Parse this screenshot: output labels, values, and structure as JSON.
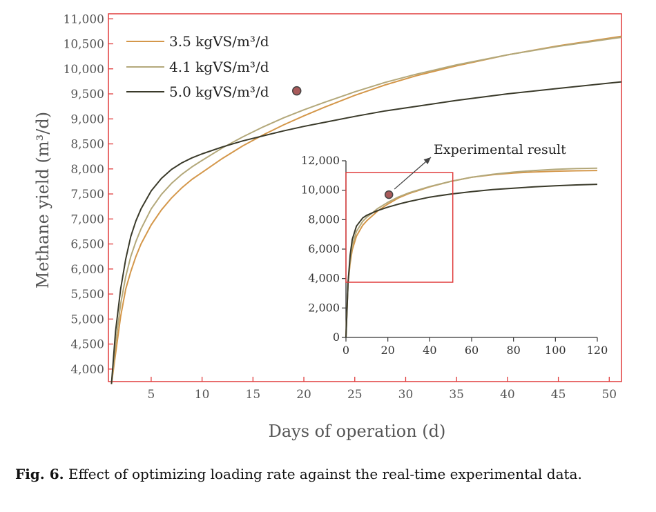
{
  "chart_data": [
    {
      "type": "line",
      "xlabel": "Days of operation (d)",
      "ylabel": "Methane yield (m³/d)",
      "xlim": [
        0.8,
        51.2
      ],
      "ylim": [
        3750,
        11100
      ],
      "x_ticks": [
        5,
        10,
        15,
        20,
        25,
        30,
        35,
        40,
        45,
        50
      ],
      "x_tick_labels": [
        "5",
        "10",
        "15",
        "20",
        "25",
        "30",
        "35",
        "40",
        "45",
        "50"
      ],
      "y_ticks": [
        4000,
        4500,
        5000,
        5500,
        6000,
        6500,
        7000,
        7500,
        8000,
        8500,
        9000,
        9500,
        10000,
        10500,
        11000
      ],
      "y_tick_labels": [
        "4,000",
        "4,500",
        "5,000",
        "5,500",
        "6,000",
        "6,500",
        "7,000",
        "7,500",
        "8,000",
        "8,500",
        "9,000",
        "9,500",
        "10,000",
        "10,500",
        "11,000"
      ],
      "legend_position": "top-left",
      "series": [
        {
          "name": "3.5 kgVS/m³/d",
          "color": "#d4974a",
          "x": [
            1.1,
            1.5,
            2,
            2.5,
            3,
            3.5,
            4,
            5,
            6,
            7,
            8,
            9,
            10,
            12,
            14,
            16,
            18,
            20,
            22,
            25,
            28,
            31,
            35,
            40,
            45,
            51.2
          ],
          "y": [
            3700,
            4300,
            5050,
            5600,
            5950,
            6250,
            6500,
            6880,
            7180,
            7420,
            7620,
            7790,
            7930,
            8210,
            8460,
            8680,
            8880,
            9060,
            9230,
            9470,
            9680,
            9860,
            10060,
            10280,
            10460,
            10650
          ]
        },
        {
          "name": "4.1 kgVS/m³/d",
          "color": "#b3a87a",
          "x": [
            1.1,
            1.5,
            2,
            2.5,
            3,
            3.5,
            4,
            5,
            6,
            7,
            8,
            9,
            10,
            12,
            14,
            16,
            18,
            20,
            22,
            25,
            28,
            31,
            35,
            40,
            45,
            51.2
          ],
          "y": [
            3700,
            4500,
            5300,
            5850,
            6250,
            6550,
            6800,
            7200,
            7490,
            7710,
            7890,
            8040,
            8170,
            8420,
            8640,
            8840,
            9020,
            9180,
            9330,
            9540,
            9730,
            9890,
            10080,
            10280,
            10450,
            10630
          ]
        },
        {
          "name": "5.0 kgVS/m³/d",
          "color": "#3a3a2a",
          "x": [
            1.1,
            1.5,
            2,
            2.5,
            3,
            3.5,
            4,
            5,
            6,
            7,
            8,
            9,
            10,
            12,
            14,
            16,
            18,
            20,
            22,
            25,
            28,
            31,
            35,
            40,
            45,
            51.2
          ],
          "y": [
            3700,
            4750,
            5600,
            6200,
            6650,
            6960,
            7200,
            7560,
            7810,
            7990,
            8120,
            8220,
            8300,
            8440,
            8560,
            8660,
            8760,
            8850,
            8930,
            9050,
            9160,
            9250,
            9370,
            9500,
            9610,
            9740
          ]
        }
      ],
      "markers": [
        {
          "x": 19.3,
          "y": 9560
        }
      ]
    },
    {
      "type": "line",
      "xlim": [
        0,
        120
      ],
      "ylim": [
        0,
        12000
      ],
      "x_ticks": [
        0,
        20,
        40,
        60,
        80,
        100,
        120
      ],
      "x_tick_labels": [
        "0",
        "20",
        "40",
        "60",
        "80",
        "100",
        "120"
      ],
      "y_ticks": [
        0,
        2000,
        4000,
        6000,
        8000,
        10000,
        12000
      ],
      "y_tick_labels": [
        "0",
        "2,000",
        "4,000",
        "6,000",
        "8,000",
        "10,000",
        "12,000"
      ],
      "highlight_box": {
        "x": [
          0,
          51
        ],
        "y": [
          3750,
          11200
        ]
      },
      "annotation": {
        "text": "Experimental result",
        "x": 20.5,
        "y": 9700
      },
      "series": [
        {
          "name": "3.5 kgVS/m³/d",
          "color": "#d4974a",
          "x": [
            0,
            1,
            2,
            3,
            5,
            8,
            10,
            15,
            20,
            25,
            30,
            40,
            50,
            60,
            70,
            80,
            90,
            100,
            110,
            120
          ],
          "y": [
            0,
            3700,
            5050,
            5950,
            6880,
            7620,
            7930,
            8570,
            9060,
            9470,
            9770,
            10230,
            10600,
            10880,
            11050,
            11170,
            11240,
            11290,
            11320,
            11340
          ]
        },
        {
          "name": "4.1 kgVS/m³/d",
          "color": "#b3a87a",
          "x": [
            0,
            1,
            2,
            3,
            5,
            8,
            10,
            15,
            20,
            25,
            30,
            40,
            50,
            60,
            70,
            80,
            90,
            100,
            110,
            120
          ],
          "y": [
            0,
            3700,
            5300,
            6250,
            7200,
            7890,
            8170,
            8740,
            9180,
            9540,
            9820,
            10250,
            10600,
            10880,
            11080,
            11230,
            11340,
            11420,
            11470,
            11500
          ]
        },
        {
          "name": "5.0 kgVS/m³/d",
          "color": "#3a3a2a",
          "x": [
            0,
            1,
            2,
            3,
            5,
            8,
            10,
            15,
            20,
            25,
            30,
            40,
            50,
            60,
            70,
            80,
            90,
            100,
            110,
            120
          ],
          "y": [
            0,
            3700,
            5600,
            6650,
            7560,
            8120,
            8300,
            8610,
            8850,
            9050,
            9230,
            9530,
            9740,
            9900,
            10040,
            10140,
            10230,
            10300,
            10360,
            10400
          ]
        }
      ],
      "markers": [
        {
          "x": 20.5,
          "y": 9700
        }
      ]
    }
  ],
  "caption": {
    "label": "Fig. 6.",
    "text": " Effect of optimizing loading rate against the real-time experimental data."
  }
}
